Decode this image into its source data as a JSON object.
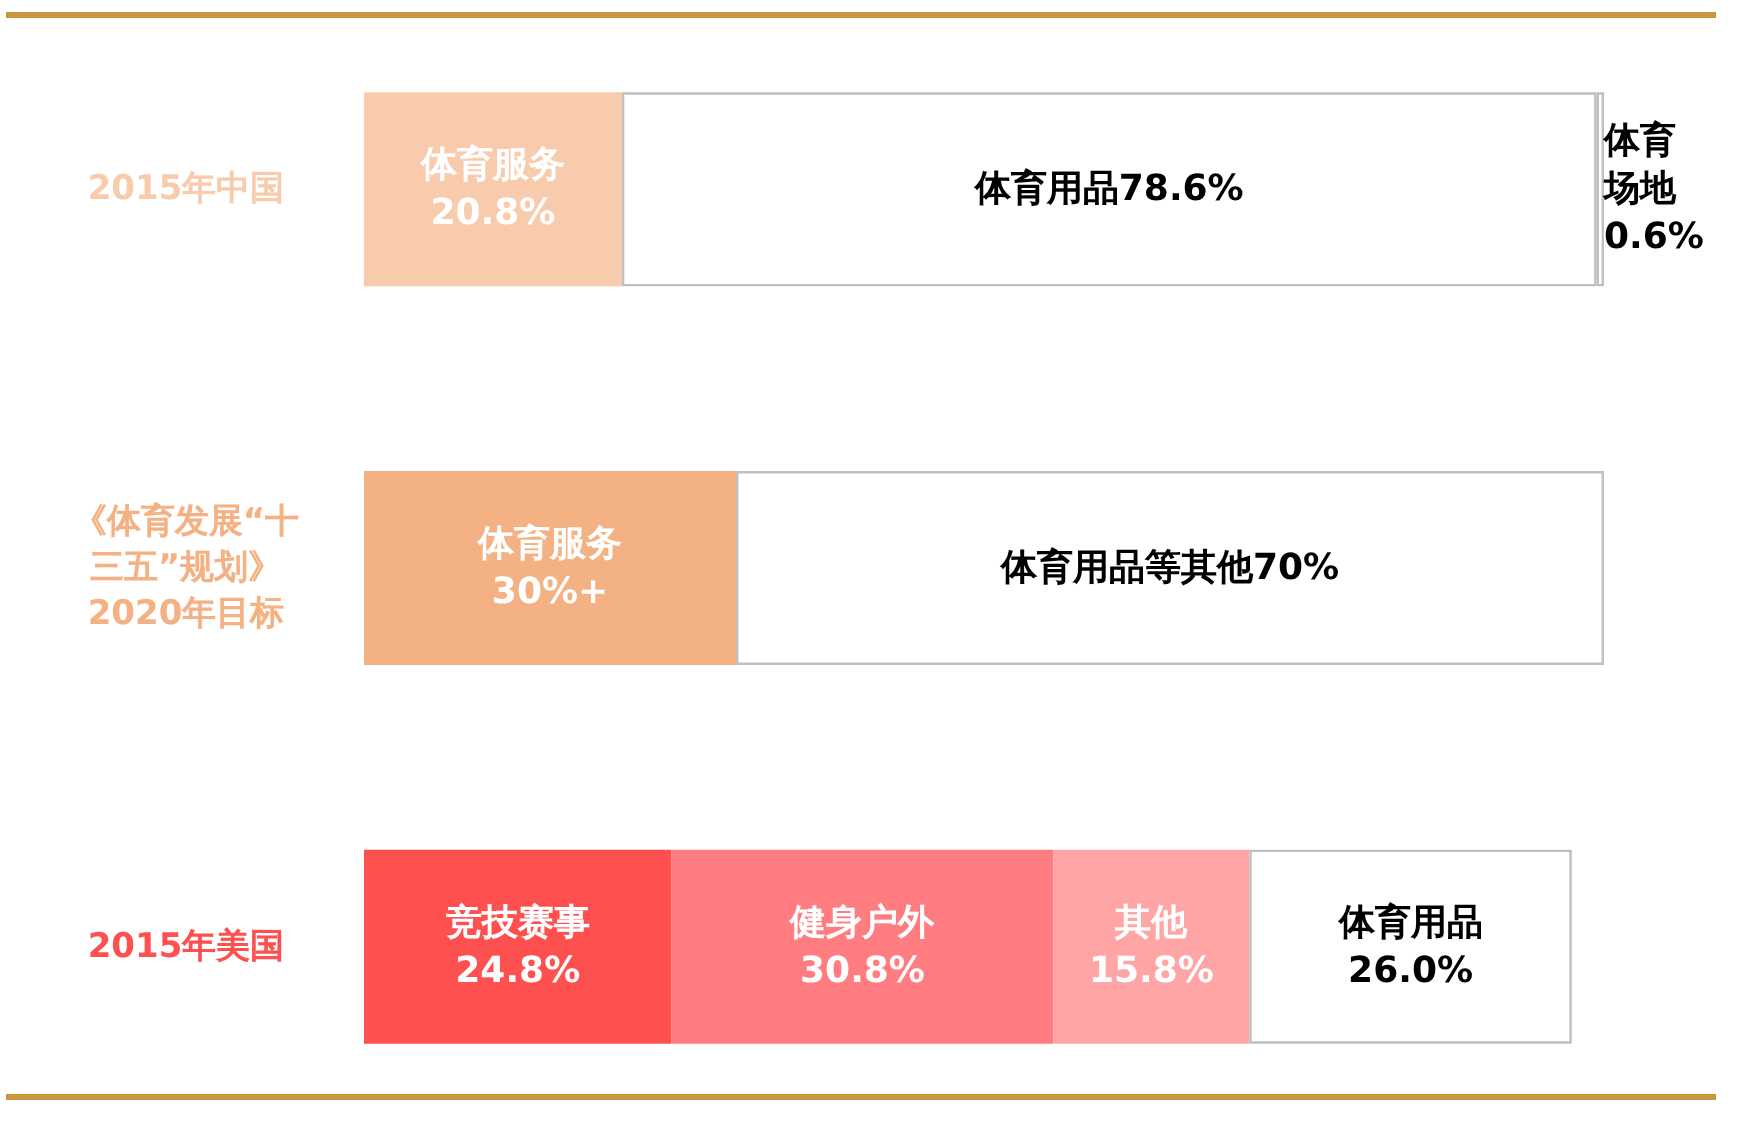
{
  "chart_data": {
    "type": "bar",
    "orientation": "horizontal",
    "stacked": true,
    "tick_labels": "y",
    "categories": [
      "2015年中国",
      "《体育发展“十三五”规划》2020年目标",
      "2015年美国"
    ],
    "series": [
      {
        "colors": [
          "#f8cbad",
          "#f4b183",
          "#ff5050"
        ],
        "values": [
          20.8,
          30,
          24.8
        ],
        "value_labels": [
          "体育服务20.8%",
          "体育服务30%+",
          "竞技赛事24.8%"
        ]
      },
      {
        "colors": [
          "#ffffff",
          "#ffffff",
          "#ff7c80"
        ],
        "values": [
          78.6,
          70,
          30.8
        ],
        "value_labels": [
          "体育用品78.6%",
          "体育用品等其他70%",
          "健身户外30.8%"
        ]
      },
      {
        "colors": [
          "#ffffff",
          null,
          "#ffa5a5"
        ],
        "values": [
          0.6,
          null,
          15.8
        ],
        "value_labels": [
          "体育场地0.6%",
          null,
          "其他15.8%"
        ]
      },
      {
        "colors": [
          null,
          null,
          "#ffffff"
        ],
        "values": [
          null,
          null,
          26.0
        ],
        "value_labels": [
          null,
          null,
          "体育用品26.0%"
        ]
      }
    ]
  }
}
